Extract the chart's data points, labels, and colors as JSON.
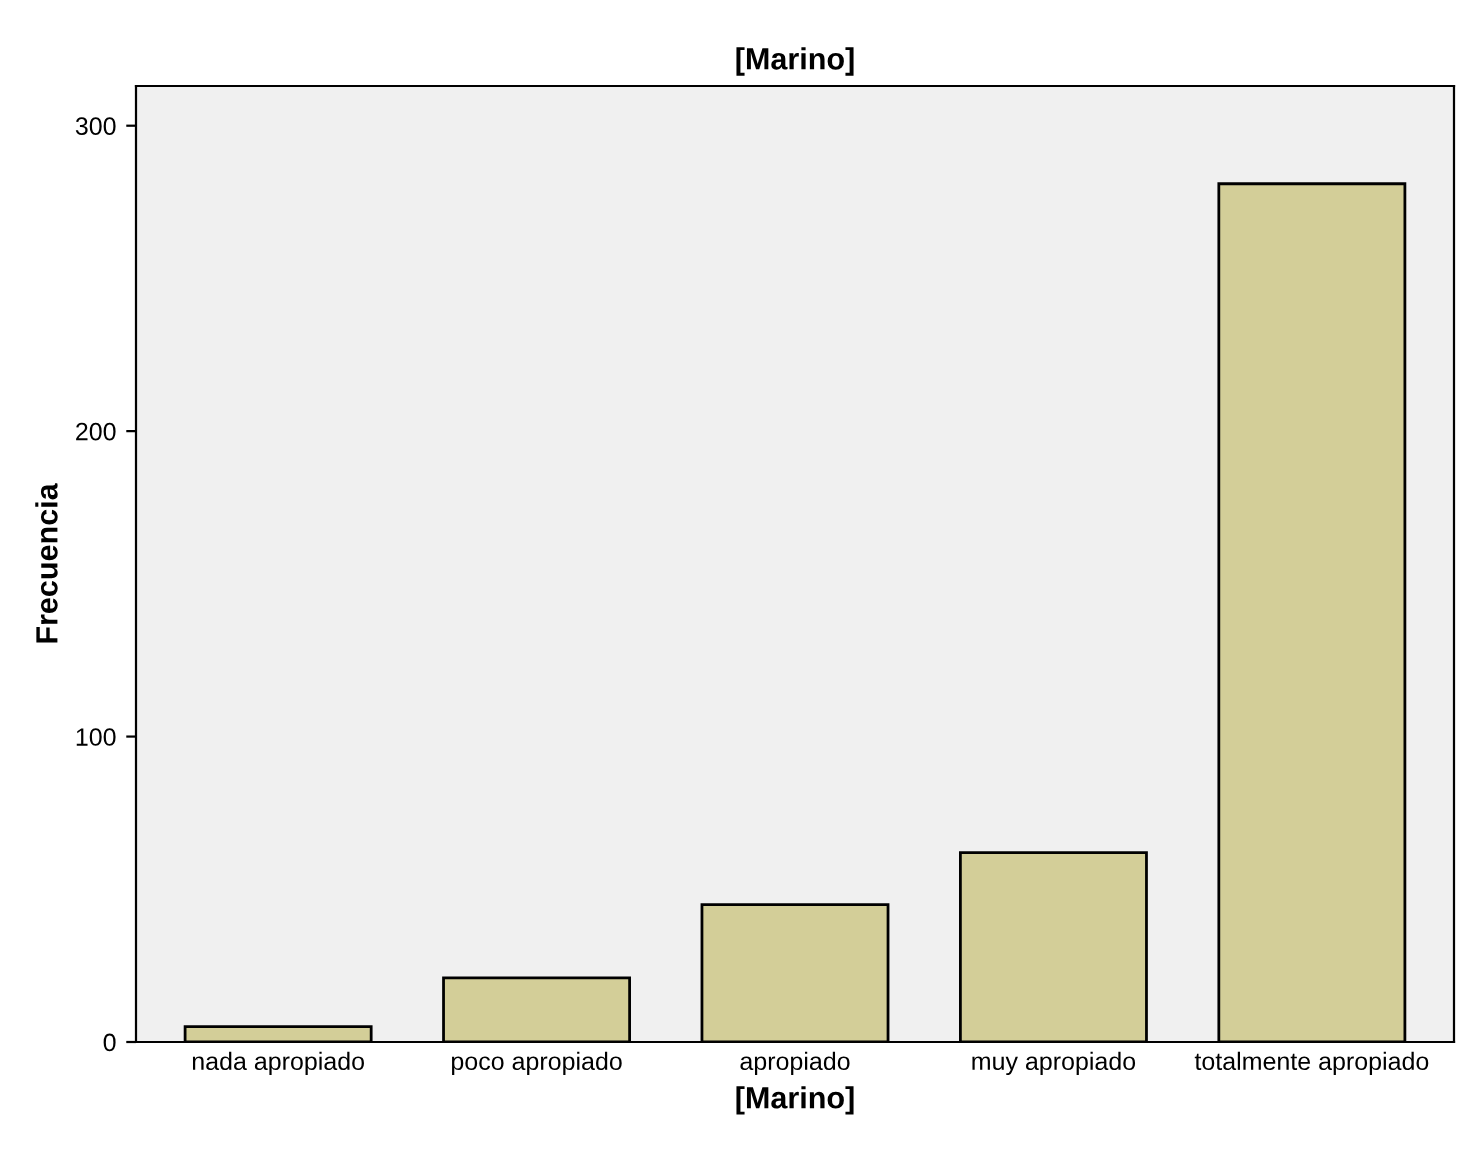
{
  "chart_data": {
    "type": "bar",
    "title": "[Marino]",
    "xlabel": "[Marino]",
    "ylabel": "Frecuencia",
    "categories": [
      "nada apropiado",
      "poco apropiado",
      "apropiado",
      "muy apropiado",
      "totalmente apropiado"
    ],
    "values": [
      5,
      21,
      45,
      62,
      281
    ],
    "color": "#d3ce98",
    "ylim": [
      0,
      313
    ],
    "yticks": [
      0,
      100,
      200,
      300
    ],
    "grid": false,
    "legend": false
  }
}
